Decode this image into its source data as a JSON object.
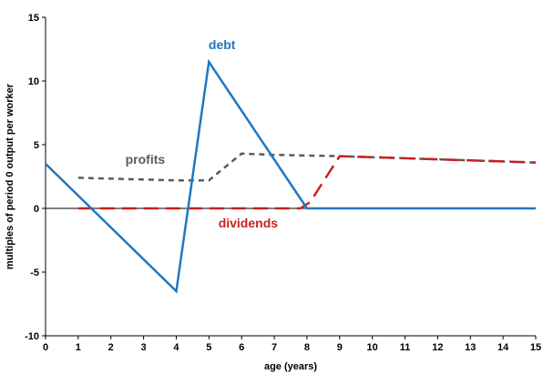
{
  "chart_data": {
    "type": "line",
    "title": "",
    "xlabel": "age (years)",
    "ylabel": "multiples of period 0 output per worker",
    "xlim": [
      0,
      15
    ],
    "ylim": [
      -10,
      15
    ],
    "xticks": [
      0,
      1,
      2,
      3,
      4,
      5,
      6,
      7,
      8,
      9,
      10,
      11,
      12,
      13,
      14,
      15
    ],
    "yticks": [
      -10,
      -5,
      0,
      5,
      10,
      15
    ],
    "grid": false,
    "legend": "none",
    "series": [
      {
        "name": "debt",
        "color": "#1f77c4",
        "dash": "solid",
        "points": [
          [
            0,
            3.5
          ],
          [
            4,
            -6.5
          ],
          [
            5,
            11.5
          ],
          [
            8,
            0
          ],
          [
            15,
            0
          ]
        ]
      },
      {
        "name": "profits",
        "color": "#5a5a5a",
        "dash": "dotted",
        "points": [
          [
            1,
            2.4
          ],
          [
            4,
            2.2
          ],
          [
            5,
            2.2
          ],
          [
            6,
            4.3
          ],
          [
            7,
            4.2
          ],
          [
            9,
            4.1
          ],
          [
            15,
            3.6
          ]
        ]
      },
      {
        "name": "dividends",
        "color": "#cc1f1f",
        "dash": "dashed",
        "points": [
          [
            1,
            0
          ],
          [
            7.8,
            0
          ],
          [
            8.1,
            0.5
          ],
          [
            9,
            4.1
          ],
          [
            15,
            3.6
          ]
        ]
      }
    ],
    "annotations": [
      {
        "series": "debt",
        "text": "debt",
        "x": 5.4,
        "y": 12.5,
        "anchor": "middle"
      },
      {
        "series": "profits",
        "text": "profits",
        "x": 3.05,
        "y": 3.5,
        "anchor": "middle"
      },
      {
        "series": "dividends",
        "text": "dividends",
        "x": 6.2,
        "y": -1.5,
        "anchor": "middle"
      }
    ]
  }
}
